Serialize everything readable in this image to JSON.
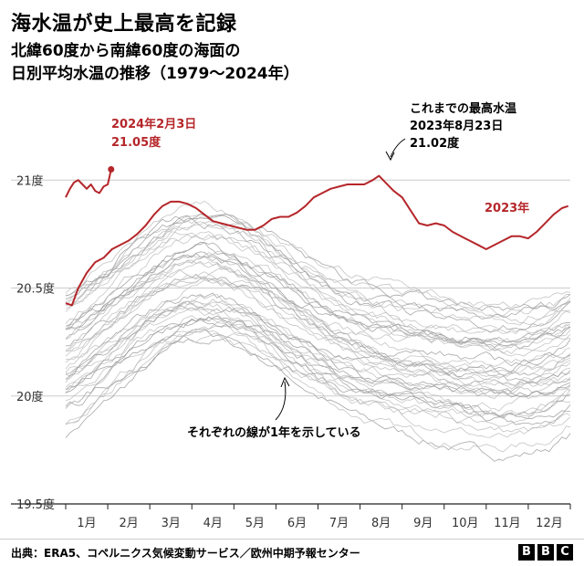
{
  "header": {
    "title": "海水温が史上最高を記録",
    "subtitle_line1": "北緯60度から南緯60度の海面の",
    "subtitle_line2": "日別平均水温の推移（1979〜2024年）"
  },
  "footer": {
    "source": "出典：ERA5、コペルニクス気候変動サービス／欧州中期予報センター",
    "logo_letters": [
      "B",
      "B",
      "C"
    ]
  },
  "colors": {
    "highlight": "#b5262a",
    "background_lines": "#bbbbbb",
    "grid": "#cccccc"
  },
  "chart_data": {
    "type": "line",
    "x_unit": "month",
    "xlim": [
      0,
      12
    ],
    "ylim": [
      19.5,
      21.2
    ],
    "month_labels": [
      "1月",
      "2月",
      "3月",
      "4月",
      "5月",
      "6月",
      "7月",
      "8月",
      "9月",
      "10月",
      "11月",
      "12月"
    ],
    "y_ticks": [
      {
        "value": 21.0,
        "label": "21度"
      },
      {
        "value": 20.5,
        "label": "20.5度"
      },
      {
        "value": 20.0,
        "label": "20度"
      },
      {
        "value": 19.5,
        "label": "19.5度"
      }
    ],
    "grid": true,
    "series": [
      {
        "name": "2024年",
        "highlight": true,
        "points": [
          [
            0.0,
            20.92
          ],
          [
            0.1,
            20.96
          ],
          [
            0.2,
            20.99
          ],
          [
            0.3,
            21.0
          ],
          [
            0.4,
            20.98
          ],
          [
            0.5,
            20.96
          ],
          [
            0.6,
            20.98
          ],
          [
            0.7,
            20.95
          ],
          [
            0.8,
            20.94
          ],
          [
            0.9,
            20.97
          ],
          [
            1.0,
            20.98
          ],
          [
            1.08,
            21.05
          ]
        ]
      },
      {
        "name": "2023年",
        "highlight": true,
        "points": [
          [
            0.0,
            20.43
          ],
          [
            0.15,
            20.42
          ],
          [
            0.3,
            20.5
          ],
          [
            0.5,
            20.57
          ],
          [
            0.7,
            20.62
          ],
          [
            0.9,
            20.64
          ],
          [
            1.1,
            20.68
          ],
          [
            1.3,
            20.7
          ],
          [
            1.5,
            20.72
          ],
          [
            1.7,
            20.75
          ],
          [
            1.9,
            20.79
          ],
          [
            2.1,
            20.84
          ],
          [
            2.3,
            20.88
          ],
          [
            2.5,
            20.9
          ],
          [
            2.7,
            20.9
          ],
          [
            2.9,
            20.89
          ],
          [
            3.1,
            20.87
          ],
          [
            3.3,
            20.84
          ],
          [
            3.5,
            20.81
          ],
          [
            3.7,
            20.8
          ],
          [
            3.9,
            20.79
          ],
          [
            4.1,
            20.78
          ],
          [
            4.3,
            20.77
          ],
          [
            4.5,
            20.77
          ],
          [
            4.7,
            20.79
          ],
          [
            4.9,
            20.82
          ],
          [
            5.1,
            20.83
          ],
          [
            5.3,
            20.83
          ],
          [
            5.5,
            20.85
          ],
          [
            5.7,
            20.88
          ],
          [
            5.9,
            20.92
          ],
          [
            6.1,
            20.94
          ],
          [
            6.3,
            20.96
          ],
          [
            6.5,
            20.97
          ],
          [
            6.7,
            20.98
          ],
          [
            6.9,
            20.98
          ],
          [
            7.1,
            20.98
          ],
          [
            7.3,
            21.0
          ],
          [
            7.45,
            21.02
          ],
          [
            7.6,
            20.99
          ],
          [
            7.8,
            20.95
          ],
          [
            8.0,
            20.92
          ],
          [
            8.2,
            20.86
          ],
          [
            8.4,
            20.8
          ],
          [
            8.6,
            20.79
          ],
          [
            8.8,
            20.8
          ],
          [
            9.0,
            20.79
          ],
          [
            9.2,
            20.76
          ],
          [
            9.4,
            20.74
          ],
          [
            9.6,
            20.72
          ],
          [
            9.8,
            20.7
          ],
          [
            10.0,
            20.68
          ],
          [
            10.2,
            20.7
          ],
          [
            10.4,
            20.72
          ],
          [
            10.6,
            20.74
          ],
          [
            10.8,
            20.74
          ],
          [
            11.0,
            20.73
          ],
          [
            11.2,
            20.76
          ],
          [
            11.4,
            20.8
          ],
          [
            11.6,
            20.84
          ],
          [
            11.8,
            20.87
          ],
          [
            11.95,
            20.88
          ]
        ]
      }
    ],
    "annotations": [
      {
        "text_line1": "2024年2月3日",
        "text_line2": "21.05度",
        "x": 1.08,
        "y": 21.05,
        "color": "highlight"
      },
      {
        "text_line1": "これまでの最高水温",
        "text_line2": "2023年8月23日",
        "text_line3": "21.02度",
        "x": 7.45,
        "y": 21.02,
        "color": "black"
      },
      {
        "text": "2023年",
        "x": 10.6,
        "y": 20.74,
        "color": "highlight"
      },
      {
        "text": "それぞれの線が1年を示している",
        "x": 5.0,
        "y": 20.02,
        "color": "black"
      }
    ],
    "background_years": {
      "count": 44,
      "note_shape": "seasonal",
      "base_range": [
        20.0,
        20.6
      ]
    }
  }
}
